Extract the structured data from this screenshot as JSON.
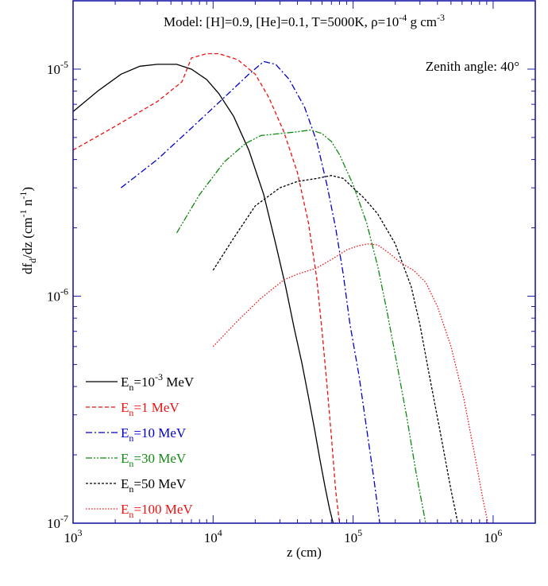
{
  "chart_data": {
    "type": "line",
    "title": "Model: [H]=0.9, [He]=0.1, T=5000K, ρ=10",
    "title_exp": "-4",
    "title_units": " g cm",
    "title_units_exp": "-3",
    "annotation": "Zenith angle: 40°",
    "xlabel": "z (cm)",
    "ylabel": {
      "main": "df",
      "sub": "d",
      "mid": "/dz (cm",
      "sup1": "-1",
      "mid2": " n",
      "sup2": "-1",
      "end": ")"
    },
    "x_scale": "log",
    "y_scale": "log",
    "xlim": [
      1000,
      2000000
    ],
    "ylim": [
      1e-07,
      2e-05
    ],
    "grid": false,
    "legend_position": "bottom-left",
    "x_ticks": [
      {
        "value": 1000,
        "base": "10",
        "exp": "3"
      },
      {
        "value": 10000,
        "base": "10",
        "exp": "4"
      },
      {
        "value": 100000,
        "base": "10",
        "exp": "5"
      },
      {
        "value": 1000000,
        "base": "10",
        "exp": "6"
      }
    ],
    "y_ticks": [
      {
        "value": 1e-05,
        "base": "10",
        "exp": "-5"
      },
      {
        "value": 1e-06,
        "base": "10",
        "exp": "-6"
      },
      {
        "value": 1e-07,
        "base": "10",
        "exp": "-7"
      }
    ],
    "series": [
      {
        "name": "E",
        "name_sub": "n",
        "name_rest": "=10",
        "name_sup": "-3",
        "name_end": " MeV",
        "color": "#000000",
        "dash": "",
        "x": [
          1000,
          1500,
          2200,
          3000,
          4000,
          5500,
          7000,
          9000,
          11000,
          14000,
          18000,
          23000,
          28000,
          33000,
          38000,
          43000,
          48000,
          53000,
          58000,
          63000,
          68000,
          72000
        ],
        "y": [
          6.5e-06,
          8e-06,
          9.5e-06,
          1.03e-05,
          1.05e-05,
          1.05e-05,
          1e-05,
          9e-06,
          7.8e-06,
          6.2e-06,
          4.4e-06,
          2.8e-06,
          1.7e-06,
          1.1e-06,
          7.2e-07,
          5.1e-07,
          3.6e-07,
          2.6e-07,
          1.9e-07,
          1.45e-07,
          1.15e-07,
          1e-07
        ]
      },
      {
        "name": "E",
        "name_sub": "n",
        "name_rest": "=1 MeV",
        "name_sup": "",
        "name_end": "",
        "color": "#ee1111",
        "dash": "5,3",
        "x": [
          1000,
          2000,
          4000,
          6000,
          7000,
          9000,
          11000,
          15000,
          20000,
          25000,
          32000,
          40000,
          48000,
          55000,
          60000,
          65000,
          70000,
          75000,
          80000
        ],
        "y": [
          4.4e-06,
          5.6e-06,
          7.2e-06,
          8.8e-06,
          1.12e-05,
          1.17e-05,
          1.17e-05,
          1.1e-05,
          9.5e-06,
          7.5e-06,
          5.3e-06,
          3.5e-06,
          2.1e-06,
          1.2e-06,
          7e-07,
          4.1e-07,
          2.4e-07,
          1.4e-07,
          1e-07
        ]
      },
      {
        "name": "E",
        "name_sub": "n",
        "name_rest": "=10 MeV",
        "name_sup": "",
        "name_end": "",
        "color": "#0000cc",
        "dash": "8,3,2,3",
        "x": [
          2200,
          4000,
          7000,
          12000,
          18000,
          23000,
          28000,
          35000,
          45000,
          55000,
          65000,
          75000,
          85000,
          95000,
          110000,
          125000,
          140000,
          155000
        ],
        "y": [
          3e-06,
          4e-06,
          5.5e-06,
          7.5e-06,
          9.5e-06,
          1.08e-05,
          1.05e-05,
          9e-06,
          6.8e-06,
          4.8e-06,
          3.1e-06,
          2e-06,
          1.25e-06,
          7.5e-07,
          4.5e-07,
          2.6e-07,
          1.6e-07,
          1e-07
        ]
      },
      {
        "name": "E",
        "name_sub": "n",
        "name_rest": "=30 MeV",
        "name_sup": "",
        "name_end": "",
        "color": "#118811",
        "dash": "8,2,2,2,2,2",
        "x": [
          5500,
          8000,
          12000,
          17000,
          22000,
          30000,
          40000,
          50000,
          60000,
          70000,
          80000,
          100000,
          125000,
          150000,
          175000,
          200000,
          240000,
          280000,
          330000
        ],
        "y": [
          1.9e-06,
          2.8e-06,
          3.9e-06,
          4.7e-06,
          5.1e-06,
          5.2e-06,
          5.3e-06,
          5.4e-06,
          5.2e-06,
          4.8e-06,
          4.2e-06,
          3.1e-06,
          2.1e-06,
          1.35e-06,
          8.5e-07,
          5.5e-07,
          3e-07,
          1.7e-07,
          1e-07
        ]
      },
      {
        "name": "E",
        "name_sub": "n",
        "name_rest": "=50 MeV",
        "name_sup": "",
        "name_end": "",
        "color": "#000000",
        "dash": "3,2",
        "x": [
          10000,
          14000,
          20000,
          30000,
          40000,
          55000,
          70000,
          85000,
          100000,
          120000,
          150000,
          200000,
          260000,
          300000,
          350000,
          420000,
          500000,
          560000
        ],
        "y": [
          1.3e-06,
          1.8e-06,
          2.5e-06,
          3e-06,
          3.2e-06,
          3.3e-06,
          3.4e-06,
          3.3e-06,
          3e-06,
          2.7e-06,
          2.3e-06,
          1.7e-06,
          1.1e-06,
          7.5e-07,
          4.5e-07,
          2.5e-07,
          1.4e-07,
          1e-07
        ]
      },
      {
        "name": "E",
        "name_sub": "n",
        "name_rest": "=100 MeV",
        "name_sup": "",
        "name_end": "",
        "color": "#ee1111",
        "dash": "1.5,2",
        "x": [
          10000,
          15000,
          22000,
          32000,
          40000,
          55000,
          70000,
          90000,
          110000,
          130000,
          150000,
          180000,
          220000,
          270000,
          330000,
          400000,
          500000,
          620000,
          750000,
          850000,
          920000
        ],
        "y": [
          6e-07,
          7.8e-07,
          9.8e-07,
          1.18e-06,
          1.25e-06,
          1.33e-06,
          1.45e-06,
          1.6e-06,
          1.67e-06,
          1.7e-06,
          1.68e-06,
          1.55e-06,
          1.4e-06,
          1.3e-06,
          1.15e-06,
          9e-07,
          6e-07,
          3.5e-07,
          1.9e-07,
          1.25e-07,
          1e-07
        ]
      }
    ]
  }
}
